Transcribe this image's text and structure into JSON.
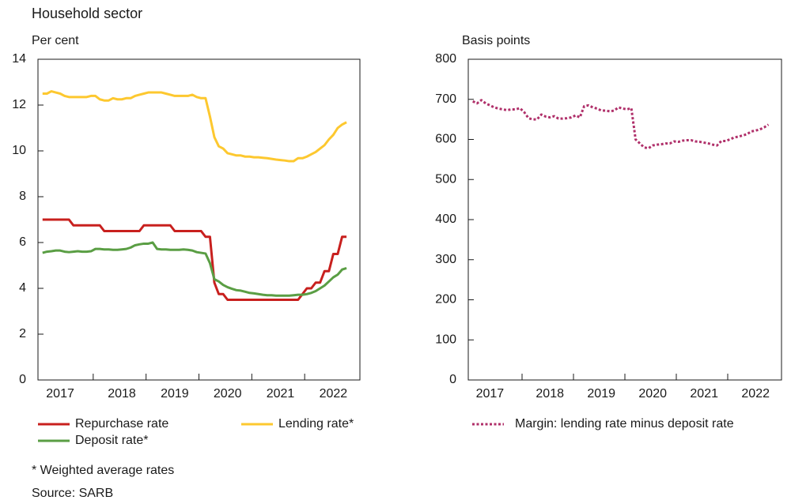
{
  "title": "Household sector",
  "footnote": "* Weighted average rates",
  "source": "Source: SARB",
  "chart_data": [
    {
      "type": "line",
      "ylabel": "Per cent",
      "categories": [
        null,
        null,
        null,
        null,
        "2017",
        null,
        null,
        null,
        null,
        null,
        null,
        null,
        null,
        null,
        null,
        null,
        null,
        null,
        "2018",
        null,
        null,
        null,
        null,
        null,
        null,
        null,
        null,
        null,
        null,
        null,
        "2019",
        null,
        null,
        null,
        null,
        null,
        null,
        null,
        null,
        null,
        null,
        null,
        "2020",
        null,
        null,
        null,
        null,
        null,
        null,
        null,
        null,
        null,
        null,
        null,
        "2021",
        null,
        null,
        null,
        null,
        null,
        null,
        null,
        null,
        null,
        null,
        null,
        "2022",
        null,
        null,
        null
      ],
      "ylim": [
        0,
        14
      ],
      "yticks": [
        0,
        2,
        4,
        6,
        8,
        10,
        12,
        14
      ],
      "series": [
        {
          "name": "Repurchase rate",
          "color": "#c8201e",
          "line_style": "solid",
          "values": [
            7,
            7,
            7,
            7,
            7,
            7,
            7,
            6.75,
            6.75,
            6.75,
            6.75,
            6.75,
            6.75,
            6.75,
            6.5,
            6.5,
            6.5,
            6.5,
            6.5,
            6.5,
            6.5,
            6.5,
            6.5,
            6.75,
            6.75,
            6.75,
            6.75,
            6.75,
            6.75,
            6.75,
            6.5,
            6.5,
            6.5,
            6.5,
            6.5,
            6.5,
            6.5,
            6.25,
            6.25,
            4.25,
            3.75,
            3.75,
            3.5,
            3.5,
            3.5,
            3.5,
            3.5,
            3.5,
            3.5,
            3.5,
            3.5,
            3.5,
            3.5,
            3.5,
            3.5,
            3.5,
            3.5,
            3.5,
            3.5,
            3.75,
            4,
            4,
            4.25,
            4.25,
            4.75,
            4.75,
            5.5,
            5.5,
            6.25,
            6.25
          ]
        },
        {
          "name": "Lending rate*",
          "color": "#fdc82f",
          "line_style": "solid",
          "values": [
            12.5,
            12.5,
            12.6,
            12.55,
            12.5,
            12.4,
            12.35,
            12.35,
            12.35,
            12.35,
            12.35,
            12.4,
            12.4,
            12.25,
            12.2,
            12.2,
            12.3,
            12.25,
            12.25,
            12.3,
            12.3,
            12.4,
            12.45,
            12.5,
            12.55,
            12.55,
            12.55,
            12.55,
            12.5,
            12.45,
            12.4,
            12.4,
            12.4,
            12.4,
            12.45,
            12.35,
            12.3,
            12.3,
            11.5,
            10.6,
            10.2,
            10.1,
            9.9,
            9.85,
            9.8,
            9.8,
            9.75,
            9.75,
            9.72,
            9.72,
            9.7,
            9.68,
            9.65,
            9.62,
            9.6,
            9.58,
            9.55,
            9.55,
            9.68,
            9.68,
            9.75,
            9.85,
            9.95,
            10.1,
            10.25,
            10.5,
            10.7,
            11,
            11.15,
            11.25
          ]
        },
        {
          "name": "Deposit rate*",
          "color": "#5a9e44",
          "line_style": "solid",
          "values": [
            5.55,
            5.6,
            5.62,
            5.65,
            5.65,
            5.6,
            5.58,
            5.6,
            5.62,
            5.6,
            5.6,
            5.62,
            5.72,
            5.72,
            5.7,
            5.7,
            5.68,
            5.68,
            5.7,
            5.72,
            5.78,
            5.88,
            5.92,
            5.95,
            5.95,
            6,
            5.72,
            5.7,
            5.7,
            5.68,
            5.68,
            5.68,
            5.7,
            5.68,
            5.65,
            5.58,
            5.55,
            5.52,
            5.1,
            4.4,
            4.3,
            4.15,
            4.05,
            3.98,
            3.92,
            3.9,
            3.85,
            3.8,
            3.78,
            3.75,
            3.72,
            3.7,
            3.7,
            3.68,
            3.68,
            3.68,
            3.68,
            3.7,
            3.72,
            3.72,
            3.75,
            3.8,
            3.88,
            4,
            4.12,
            4.3,
            4.48,
            4.6,
            4.82,
            4.88
          ]
        }
      ]
    },
    {
      "type": "line",
      "ylabel": "Basis points",
      "categories": [
        null,
        null,
        null,
        null,
        "2017",
        null,
        null,
        null,
        null,
        null,
        null,
        null,
        null,
        null,
        null,
        null,
        null,
        null,
        "2018",
        null,
        null,
        null,
        null,
        null,
        null,
        null,
        null,
        null,
        null,
        null,
        "2019",
        null,
        null,
        null,
        null,
        null,
        null,
        null,
        null,
        null,
        null,
        null,
        "2020",
        null,
        null,
        null,
        null,
        null,
        null,
        null,
        null,
        null,
        null,
        null,
        "2021",
        null,
        null,
        null,
        null,
        null,
        null,
        null,
        null,
        null,
        null,
        null,
        "2022",
        null,
        null,
        null
      ],
      "ylim": [
        0,
        800
      ],
      "yticks": [
        0,
        100,
        200,
        300,
        400,
        500,
        600,
        700,
        800
      ],
      "series": [
        {
          "name": "Margin: lending rate minus deposit rate",
          "color": "#b0306a",
          "line_style": "dotted",
          "values": [
            695,
            690,
            698,
            690,
            685,
            680,
            677,
            675,
            673,
            675,
            675,
            678,
            668,
            653,
            650,
            650,
            662,
            657,
            655,
            658,
            652,
            652,
            653,
            655,
            660,
            655,
            683,
            685,
            680,
            677,
            672,
            672,
            670,
            672,
            680,
            677,
            675,
            678,
            600,
            590,
            580,
            578,
            585,
            587,
            588,
            590,
            590,
            595,
            594,
            597,
            598,
            598,
            595,
            594,
            592,
            590,
            587,
            585,
            596,
            596,
            600,
            605,
            607,
            610,
            613,
            620,
            622,
            625,
            630,
            637
          ]
        }
      ]
    }
  ]
}
